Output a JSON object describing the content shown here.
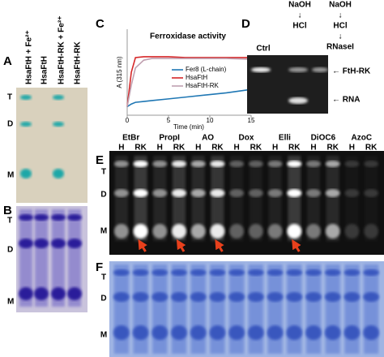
{
  "panels": {
    "A": "A",
    "B": "B",
    "C": "C",
    "D": "D",
    "E": "E",
    "F": "F"
  },
  "panel_a": {
    "lanes": [
      "HsaFtH + Fe²⁺",
      "HsaFtH",
      "HsaFtH-RK + Fe²⁺",
      "HsaFtH-RK"
    ],
    "markers": [
      "T",
      "D",
      "M"
    ]
  },
  "panel_b": {
    "markers": [
      "T",
      "D",
      "M"
    ]
  },
  "panel_d": {
    "treatment": [
      "NaOH",
      "↓",
      "HCl"
    ],
    "treatment2": [
      "NaOH",
      "↓",
      "HCl",
      "↓",
      "RNaseI"
    ],
    "lanes": [
      "Ctrl"
    ],
    "bands": [
      "← FtH-RK",
      "← RNA"
    ]
  },
  "panel_e": {
    "dyes": [
      "EtBr",
      "PropI",
      "AO",
      "Dox",
      "Elli",
      "DiOC6",
      "AzoC"
    ],
    "lanes": [
      "H",
      "RK"
    ],
    "markers": [
      "T",
      "D",
      "M"
    ]
  },
  "panel_f": {
    "markers": [
      "T",
      "D",
      "M"
    ]
  },
  "chart_data": {
    "type": "line",
    "title": "Ferroxidase activity",
    "xlabel": "Time (min)",
    "ylabel": "A (315 nm)",
    "x": [
      0,
      0.5,
      1,
      2,
      3,
      5,
      7,
      10,
      12,
      15
    ],
    "xlim": [
      0,
      15
    ],
    "xticks": [
      0,
      5,
      10,
      15
    ],
    "ylim": [
      0,
      1
    ],
    "series": [
      {
        "name": "Fer8 (L-chain)",
        "color": "#1f77b4",
        "values": [
          0.1,
          0.13,
          0.15,
          0.16,
          0.17,
          0.19,
          0.21,
          0.24,
          0.26,
          0.3
        ]
      },
      {
        "name": "HsaFtH",
        "color": "#d62728",
        "values": [
          0.1,
          0.5,
          0.67,
          0.68,
          0.68,
          0.68,
          0.67,
          0.67,
          0.67,
          0.67
        ]
      },
      {
        "name": "HsaFtH-RK",
        "color": "#c0a0b0",
        "values": [
          0.1,
          0.35,
          0.55,
          0.64,
          0.66,
          0.66,
          0.66,
          0.66,
          0.66,
          0.65
        ]
      }
    ],
    "legend": "lower right"
  }
}
